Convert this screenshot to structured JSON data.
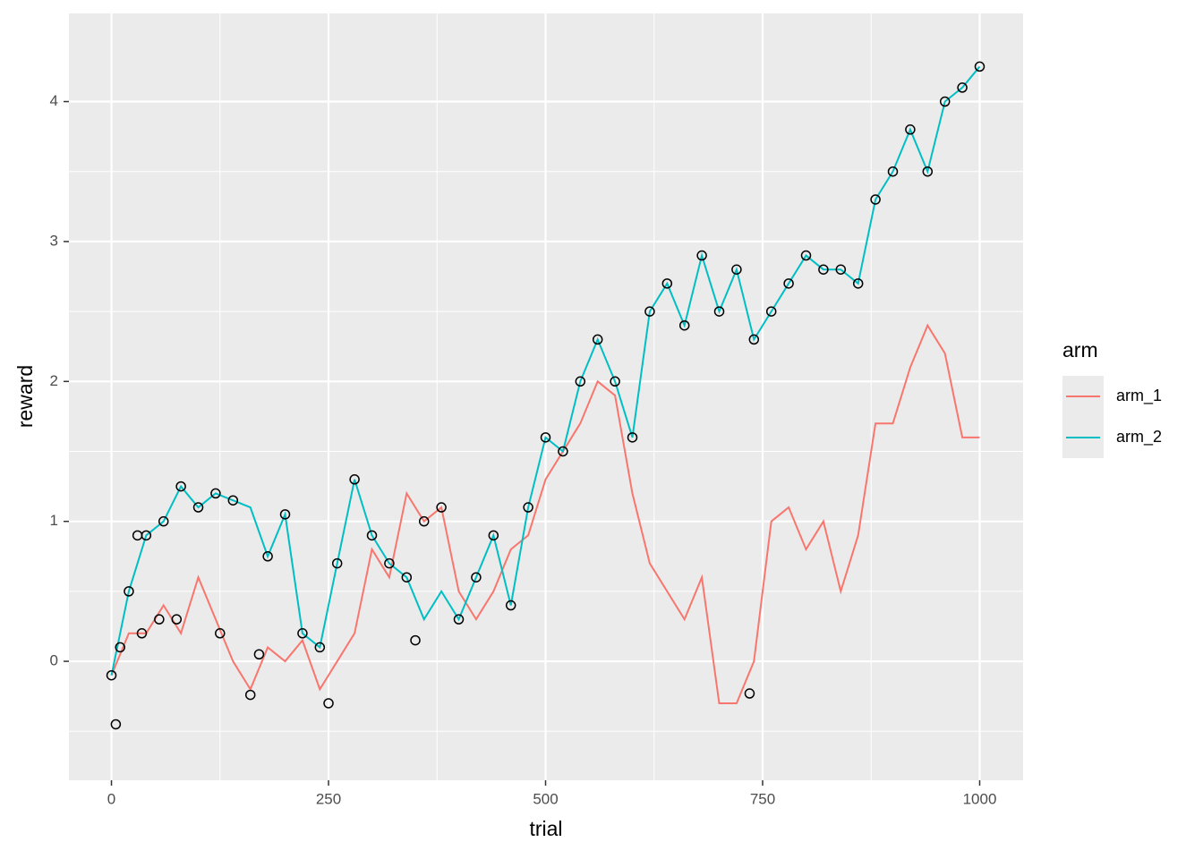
{
  "chart_data": {
    "type": "line",
    "x_label": "trial",
    "y_label": "reward",
    "legend_title": "arm",
    "xlim": [
      -49,
      1050
    ],
    "ylim": [
      -0.85,
      4.63
    ],
    "xticks": [
      0,
      250,
      500,
      750,
      1000
    ],
    "yticks": [
      0,
      1,
      2,
      3,
      4
    ],
    "xminor": [
      125,
      375,
      625,
      875
    ],
    "yminor": [
      -0.5,
      0.5,
      1.5,
      2.5,
      3.5
    ],
    "grid": true,
    "legend": "right",
    "x": [
      0,
      20,
      40,
      60,
      80,
      100,
      120,
      140,
      160,
      180,
      200,
      220,
      240,
      260,
      280,
      300,
      320,
      340,
      360,
      380,
      400,
      420,
      440,
      460,
      480,
      500,
      520,
      540,
      560,
      580,
      600,
      620,
      640,
      660,
      680,
      700,
      720,
      740,
      760,
      780,
      800,
      820,
      840,
      860,
      880,
      900,
      920,
      940,
      960,
      980,
      1000
    ],
    "series": [
      {
        "name": "arm_1",
        "color": "#F8766D",
        "values": [
          -0.1,
          0.2,
          0.2,
          0.4,
          0.2,
          0.6,
          0.3,
          0.0,
          -0.2,
          0.1,
          0.0,
          0.15,
          -0.2,
          0.0,
          0.2,
          0.8,
          0.6,
          1.2,
          1.0,
          1.1,
          0.5,
          0.3,
          0.5,
          0.8,
          0.9,
          1.3,
          1.5,
          1.7,
          2.0,
          1.9,
          1.2,
          0.7,
          0.5,
          0.3,
          0.6,
          -0.3,
          -0.3,
          0.0,
          1.0,
          1.1,
          0.8,
          1.0,
          0.5,
          0.9,
          1.7,
          1.7,
          2.1,
          2.4,
          2.2,
          1.6,
          1.6
        ]
      },
      {
        "name": "arm_2",
        "color": "#00BFC4",
        "values": [
          -0.1,
          0.5,
          0.9,
          1.0,
          1.25,
          1.1,
          1.2,
          1.15,
          1.1,
          0.75,
          1.05,
          0.2,
          0.1,
          0.7,
          1.3,
          0.9,
          0.7,
          0.6,
          0.3,
          0.5,
          0.3,
          0.6,
          0.9,
          0.4,
          1.1,
          1.6,
          1.5,
          2.0,
          2.3,
          2.0,
          1.6,
          2.5,
          2.7,
          2.4,
          2.9,
          2.5,
          2.8,
          2.3,
          2.5,
          2.7,
          2.9,
          2.8,
          2.8,
          2.7,
          3.3,
          3.5,
          3.8,
          3.5,
          4.0,
          4.1,
          4.25
        ]
      }
    ],
    "points": {
      "x": [
        0,
        5,
        10,
        20,
        30,
        35,
        40,
        55,
        60,
        75,
        80,
        100,
        120,
        125,
        140,
        160,
        170,
        180,
        200,
        220,
        240,
        250,
        260,
        280,
        300,
        320,
        340,
        350,
        360,
        380,
        400,
        420,
        440,
        460,
        480,
        500,
        520,
        540,
        560,
        580,
        600,
        620,
        640,
        660,
        680,
        700,
        720,
        735,
        740,
        760,
        780,
        800,
        820,
        840,
        860,
        880,
        900,
        920,
        940,
        960,
        980,
        1000
      ],
      "y": [
        -0.1,
        -0.45,
        0.1,
        0.5,
        0.9,
        0.2,
        0.9,
        0.3,
        1.0,
        0.3,
        1.25,
        1.1,
        1.2,
        0.2,
        1.15,
        -0.24,
        0.05,
        0.75,
        1.05,
        0.2,
        0.1,
        -0.3,
        0.7,
        1.3,
        0.9,
        0.7,
        0.6,
        0.15,
        1.0,
        1.1,
        0.3,
        0.6,
        0.9,
        0.4,
        1.1,
        1.6,
        1.5,
        2.0,
        2.3,
        2.0,
        1.6,
        2.5,
        2.7,
        2.4,
        2.9,
        2.5,
        2.8,
        -0.23,
        2.3,
        2.5,
        2.7,
        2.9,
        2.8,
        2.8,
        2.7,
        3.3,
        3.5,
        3.8,
        3.5,
        4.0,
        4.1,
        4.25
      ]
    }
  }
}
